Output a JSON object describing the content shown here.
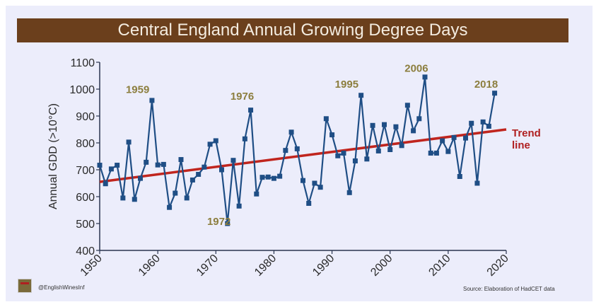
{
  "title": "Central England Annual Growing Degree Days",
  "footer": {
    "handle": "@EnglishWinesInf",
    "source": "Source: Elaboration of HadCET data"
  },
  "chart_data": {
    "type": "line",
    "title": "Central England Annual Growing Degree Days",
    "xlabel": "",
    "ylabel": "Annual GDD (>10°C)",
    "xlim": [
      1950,
      2020
    ],
    "ylim": [
      400,
      1100
    ],
    "xticks": [
      1950,
      1960,
      1970,
      1980,
      1990,
      2000,
      2010,
      2020
    ],
    "yticks": [
      400,
      500,
      600,
      700,
      800,
      900,
      1000,
      1100
    ],
    "grid": false,
    "series": [
      {
        "name": "Annual GDD",
        "color": "#1f4e85",
        "marker": "square",
        "x": [
          1950,
          1951,
          1952,
          1953,
          1954,
          1955,
          1956,
          1957,
          1958,
          1959,
          1960,
          1961,
          1962,
          1963,
          1964,
          1965,
          1966,
          1967,
          1968,
          1969,
          1970,
          1971,
          1972,
          1973,
          1974,
          1975,
          1976,
          1977,
          1978,
          1979,
          1980,
          1981,
          1982,
          1983,
          1984,
          1985,
          1986,
          1987,
          1988,
          1989,
          1990,
          1991,
          1992,
          1993,
          1994,
          1995,
          1996,
          1997,
          1998,
          1999,
          2000,
          2001,
          2002,
          2003,
          2004,
          2005,
          2006,
          2007,
          2008,
          2009,
          2010,
          2011,
          2012,
          2013,
          2014,
          2015,
          2016,
          2017,
          2018
        ],
        "values": [
          717,
          648,
          703,
          717,
          595,
          803,
          590,
          668,
          728,
          958,
          718,
          720,
          560,
          613,
          738,
          595,
          662,
          683,
          710,
          795,
          808,
          700,
          500,
          735,
          565,
          815,
          922,
          610,
          672,
          673,
          668,
          676,
          772,
          840,
          778,
          660,
          575,
          650,
          635,
          890,
          830,
          752,
          762,
          615,
          733,
          977,
          740,
          865,
          770,
          868,
          775,
          860,
          790,
          940,
          845,
          890,
          1045,
          762,
          762,
          808,
          768,
          820,
          675,
          818,
          873,
          650,
          878,
          862,
          985
        ]
      },
      {
        "name": "Trend line",
        "color": "#c0251e",
        "x": [
          1950,
          2020
        ],
        "values": [
          655,
          850
        ]
      }
    ],
    "annotations": [
      {
        "text": "1959",
        "x": 1954.5,
        "y": 985
      },
      {
        "text": "1976",
        "x": 1972.5,
        "y": 960
      },
      {
        "text": "1972",
        "x": 1968.5,
        "y": 495
      },
      {
        "text": "1995",
        "x": 1990.5,
        "y": 1005
      },
      {
        "text": "2006",
        "x": 2002.5,
        "y": 1065
      },
      {
        "text": "2018",
        "x": 2014.5,
        "y": 1005
      }
    ],
    "trend_label": [
      "Trend",
      "line"
    ],
    "legend": "none"
  }
}
